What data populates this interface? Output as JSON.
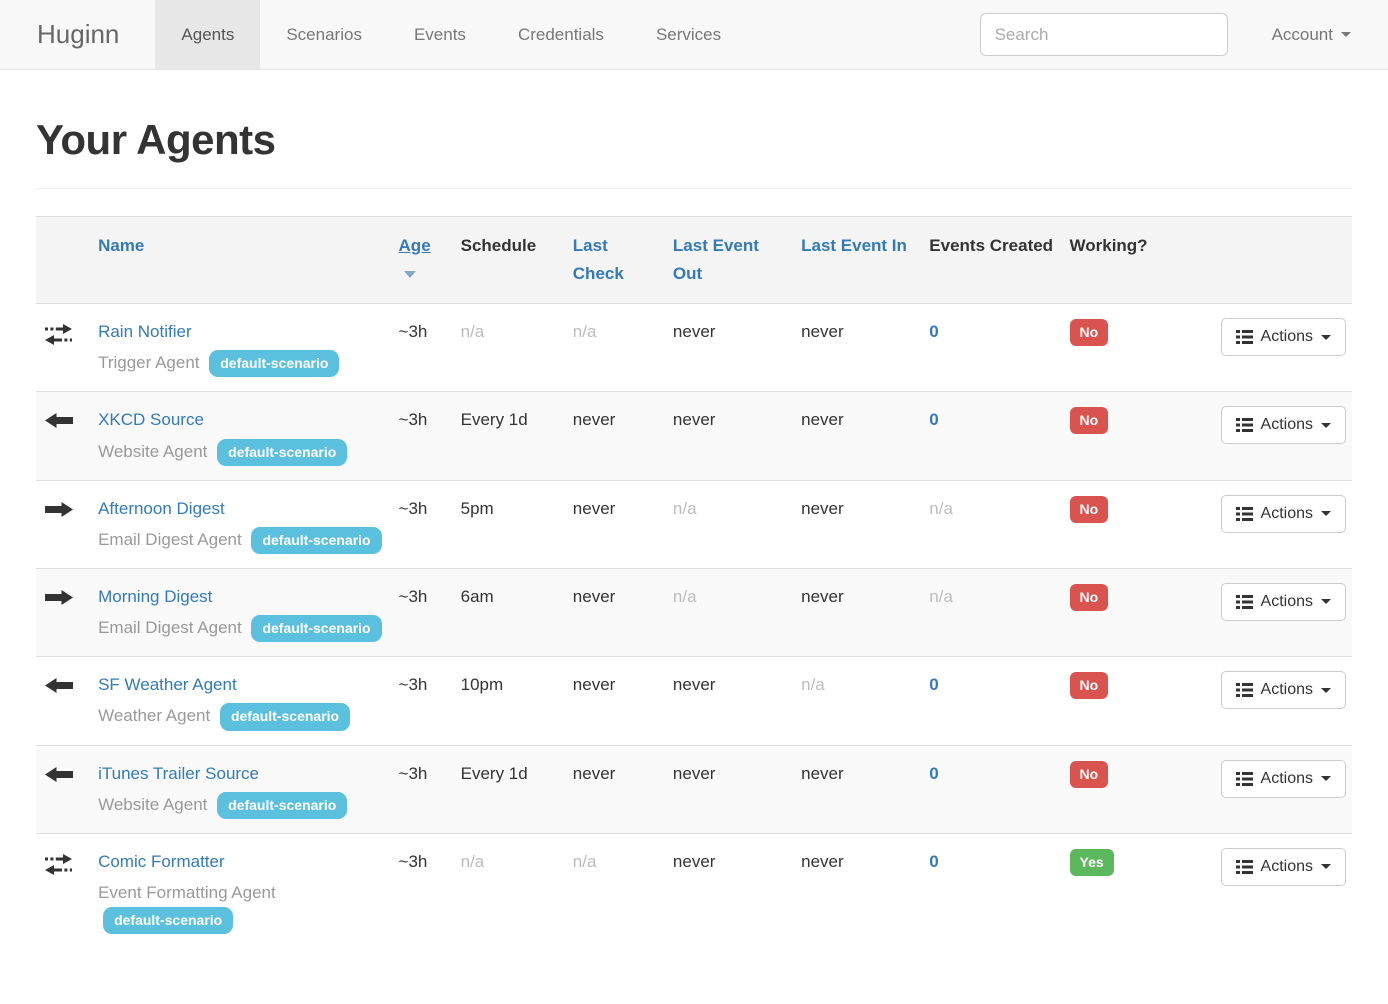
{
  "navbar": {
    "brand": "Huginn",
    "items": [
      {
        "label": "Agents",
        "active": true
      },
      {
        "label": "Scenarios",
        "active": false
      },
      {
        "label": "Events",
        "active": false
      },
      {
        "label": "Credentials",
        "active": false
      },
      {
        "label": "Services",
        "active": false
      }
    ],
    "search_placeholder": "Search",
    "account_label": "Account"
  },
  "page": {
    "title": "Your Agents"
  },
  "table": {
    "headers": {
      "name": "Name",
      "age": "Age",
      "schedule": "Schedule",
      "last_check": "Last Check",
      "last_event_out": "Last Event Out",
      "last_event_in": "Last Event In",
      "events_created": "Events Created",
      "working": "Working?"
    },
    "actions_label": "Actions",
    "rows": [
      {
        "icon": "bidirectional",
        "name": "Rain Notifier",
        "type": "Trigger Agent",
        "scenario": "default-scenario",
        "age": "~3h",
        "schedule": "n/a",
        "last_check": "n/a",
        "last_event_out": "never",
        "last_event_in": "never",
        "events_created": "0",
        "working": "No"
      },
      {
        "icon": "arrow-left",
        "name": "XKCD Source",
        "type": "Website Agent",
        "scenario": "default-scenario",
        "age": "~3h",
        "schedule": "Every 1d",
        "last_check": "never",
        "last_event_out": "never",
        "last_event_in": "never",
        "events_created": "0",
        "working": "No"
      },
      {
        "icon": "arrow-right",
        "name": "Afternoon Digest",
        "type": "Email Digest Agent",
        "scenario": "default-scenario",
        "age": "~3h",
        "schedule": "5pm",
        "last_check": "never",
        "last_event_out": "n/a",
        "last_event_in": "never",
        "events_created": "n/a",
        "working": "No"
      },
      {
        "icon": "arrow-right",
        "name": "Morning Digest",
        "type": "Email Digest Agent",
        "scenario": "default-scenario",
        "age": "~3h",
        "schedule": "6am",
        "last_check": "never",
        "last_event_out": "n/a",
        "last_event_in": "never",
        "events_created": "n/a",
        "working": "No"
      },
      {
        "icon": "arrow-left",
        "name": "SF Weather Agent",
        "type": "Weather Agent",
        "scenario": "default-scenario",
        "age": "~3h",
        "schedule": "10pm",
        "last_check": "never",
        "last_event_out": "never",
        "last_event_in": "n/a",
        "events_created": "0",
        "working": "No"
      },
      {
        "icon": "arrow-left",
        "name": "iTunes Trailer Source",
        "type": "Website Agent",
        "scenario": "default-scenario",
        "age": "~3h",
        "schedule": "Every 1d",
        "last_check": "never",
        "last_event_out": "never",
        "last_event_in": "never",
        "events_created": "0",
        "working": "No"
      },
      {
        "icon": "bidirectional",
        "name": "Comic Formatter",
        "type": "Event Formatting Agent",
        "scenario": "default-scenario",
        "age": "~3h",
        "schedule": "n/a",
        "last_check": "n/a",
        "last_event_out": "never",
        "last_event_in": "never",
        "events_created": "0",
        "working": "Yes"
      }
    ]
  },
  "colors": {
    "link_blue": "#337ab7",
    "scenario_badge": "#5bc0de",
    "working_no": "#d9534f",
    "working_yes": "#5cb85c",
    "navbar_bg": "#f8f8f8",
    "active_tab_bg": "#e7e7e7",
    "stripe_bg": "#f9f9f9"
  }
}
